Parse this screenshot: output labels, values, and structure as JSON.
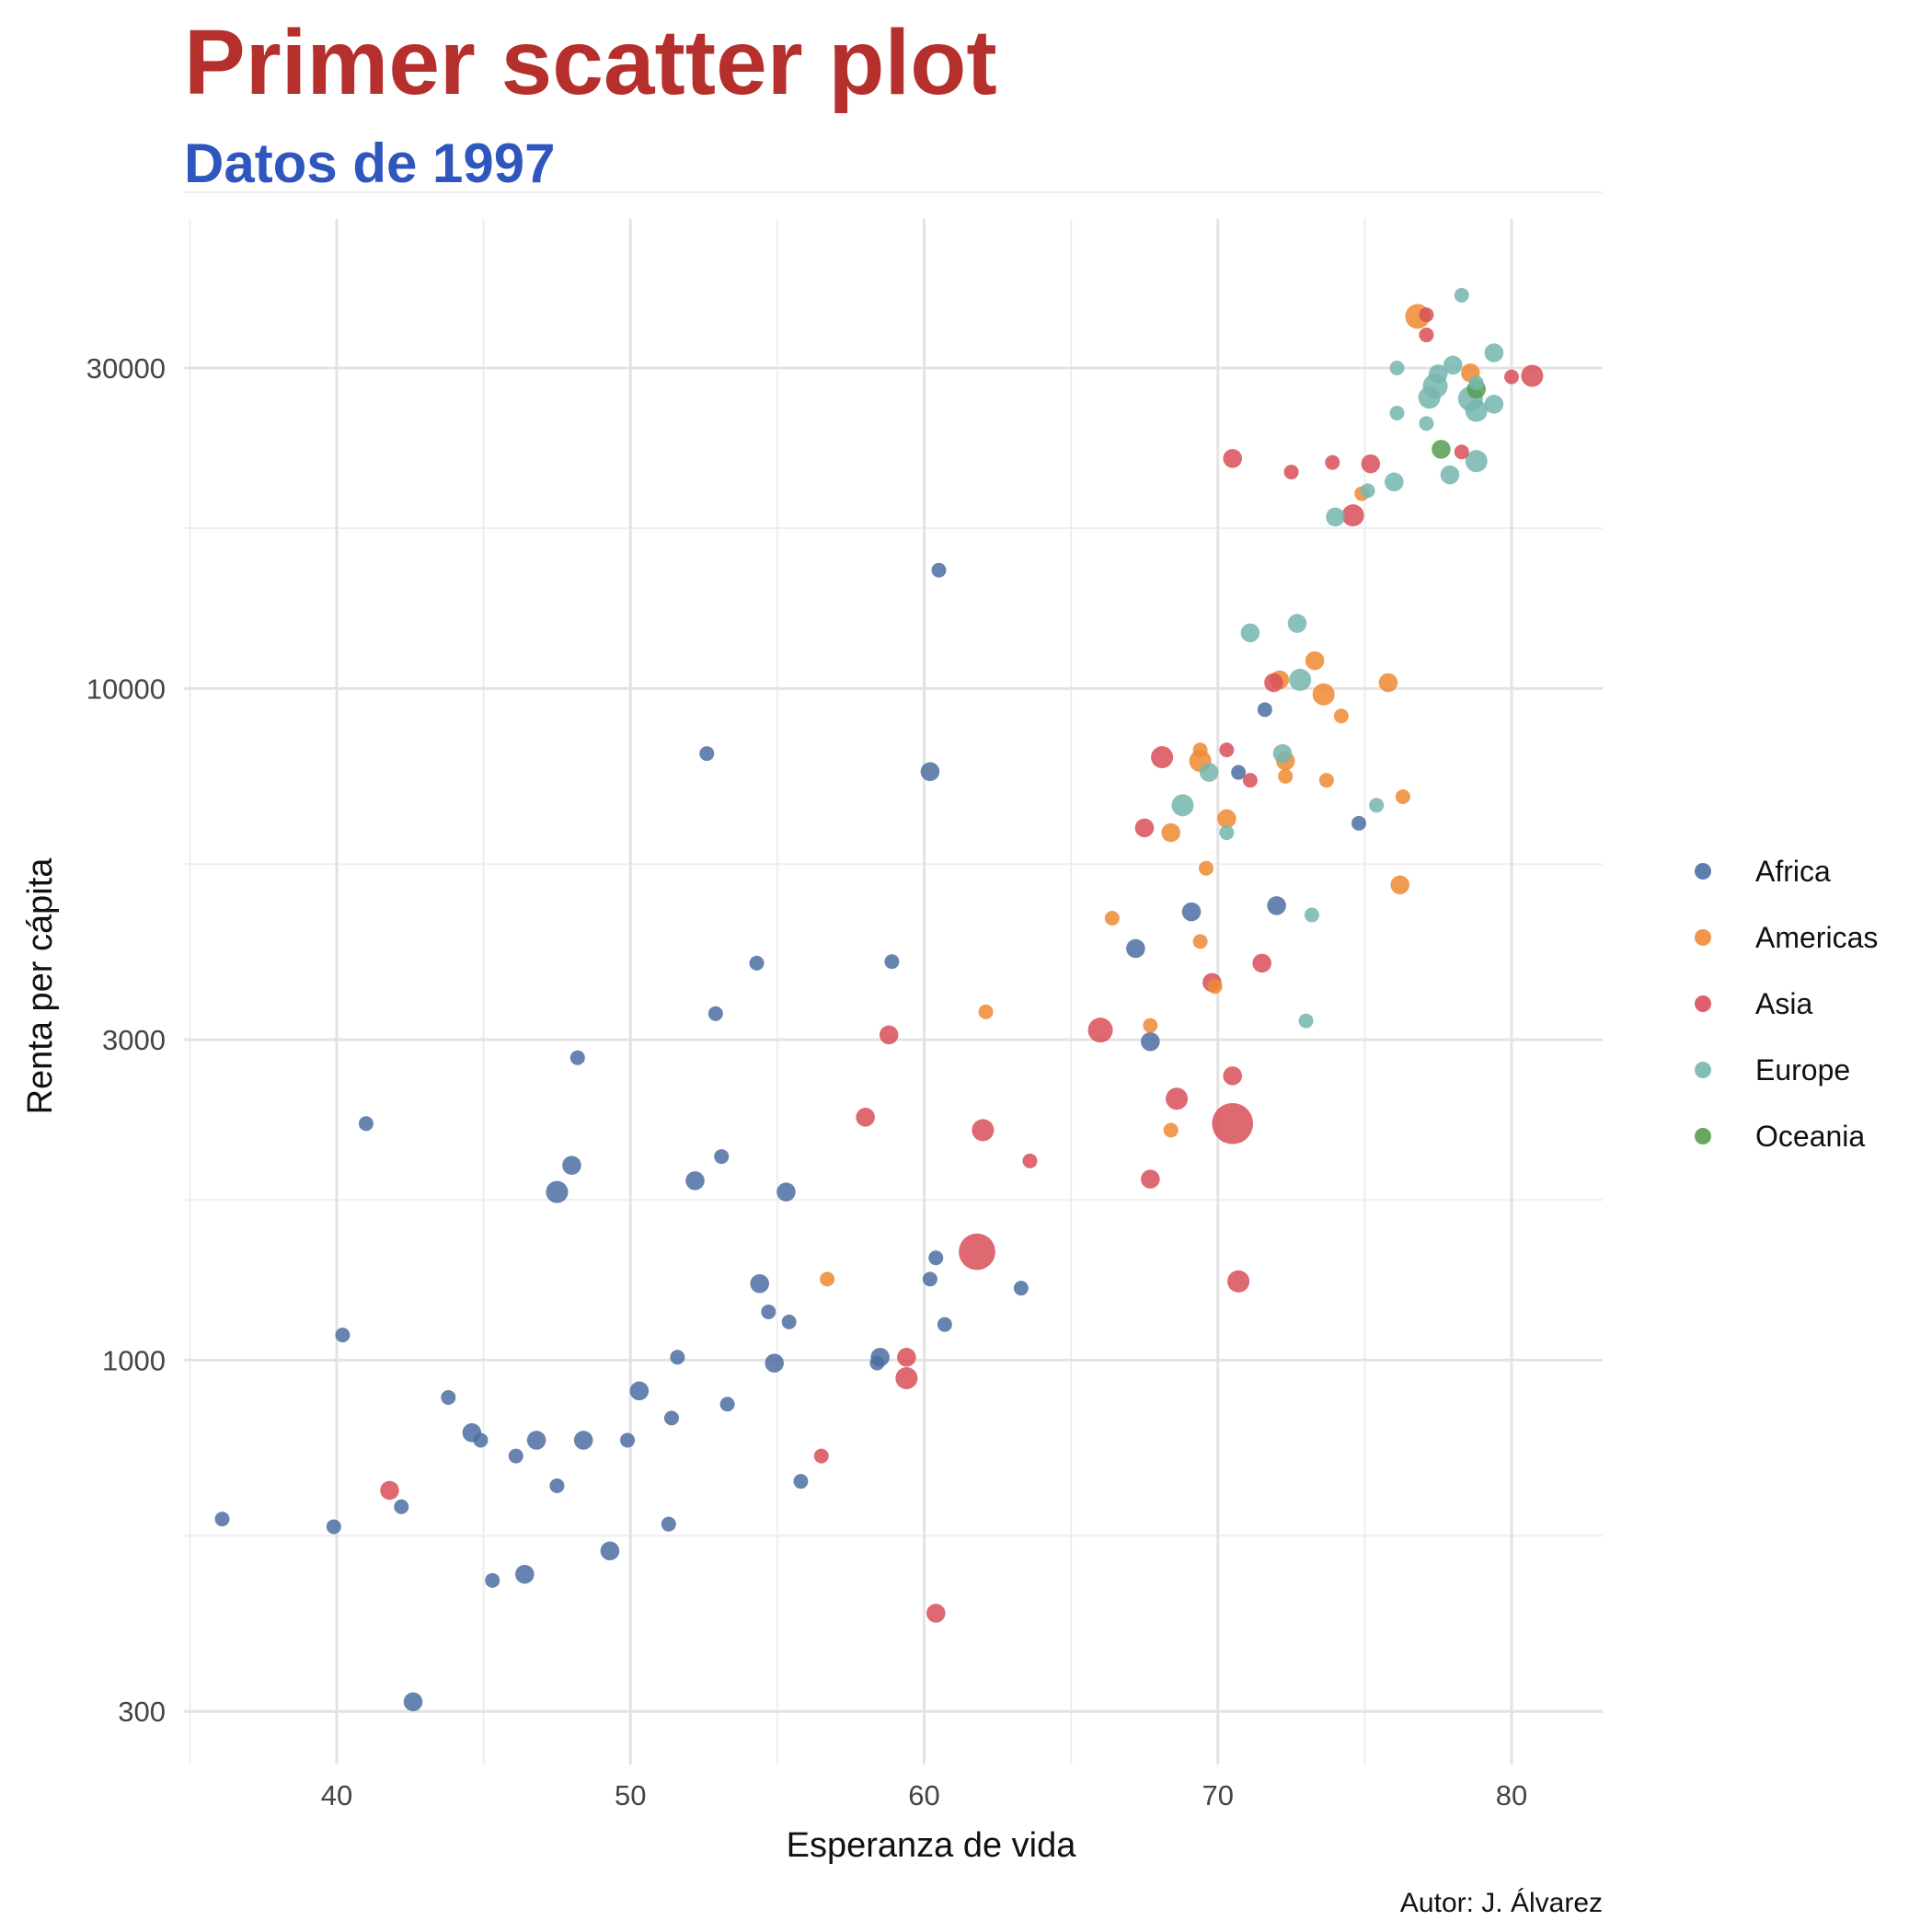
{
  "colors": {
    "title": "#b5302c",
    "subtitle": "#2f56be",
    "grid_major": "#e3e3e3",
    "grid_minor": "#eeeeee"
  },
  "caption": "Autor: J. Álvarez",
  "chart_data": {
    "type": "scatter",
    "title": "Primer scatter plot",
    "subtitle": "Datos de 1997",
    "xlabel": "Esperanza de vida",
    "ylabel": "Renta per cápita",
    "x_scale": "linear",
    "y_scale": "log10",
    "xlim": [
      34.8,
      83.1
    ],
    "ylim": [
      250,
      50000
    ],
    "x_ticks": [
      40,
      50,
      60,
      70,
      80
    ],
    "x_tick_labels": [
      "40",
      "50",
      "60",
      "70",
      "80"
    ],
    "y_ticks": [
      300,
      1000,
      3000,
      10000,
      30000
    ],
    "y_tick_labels": [
      "300",
      "1000",
      "3000",
      "10000",
      "30000"
    ],
    "grid": true,
    "legend_position": "right",
    "point_size_meaning": "population",
    "series": [
      {
        "name": "Africa",
        "color": "#4e6fa3",
        "points": [
          [
            36.1,
            580,
            1
          ],
          [
            39.9,
            565,
            1
          ],
          [
            40.2,
            1090,
            1
          ],
          [
            41.0,
            2250,
            1
          ],
          [
            42.2,
            605,
            1
          ],
          [
            42.6,
            310,
            2
          ],
          [
            43.8,
            880,
            1
          ],
          [
            44.6,
            780,
            2
          ],
          [
            44.9,
            760,
            1
          ],
          [
            45.3,
            470,
            1
          ],
          [
            46.1,
            720,
            1
          ],
          [
            46.4,
            480,
            2
          ],
          [
            46.8,
            760,
            2
          ],
          [
            47.5,
            650,
            1
          ],
          [
            47.5,
            1780,
            3
          ],
          [
            48.0,
            1950,
            2
          ],
          [
            48.2,
            2820,
            1
          ],
          [
            48.4,
            760,
            2
          ],
          [
            49.3,
            520,
            2
          ],
          [
            49.9,
            760,
            1
          ],
          [
            50.3,
            900,
            2
          ],
          [
            51.3,
            570,
            1
          ],
          [
            51.4,
            820,
            1
          ],
          [
            51.6,
            1010,
            1
          ],
          [
            52.2,
            1850,
            2
          ],
          [
            52.6,
            8000,
            1
          ],
          [
            52.9,
            3280,
            1
          ],
          [
            53.1,
            2010,
            1
          ],
          [
            53.3,
            860,
            1
          ],
          [
            54.3,
            3900,
            1
          ],
          [
            54.4,
            1300,
            2
          ],
          [
            54.7,
            1180,
            1
          ],
          [
            54.9,
            990,
            2
          ],
          [
            55.3,
            1780,
            2
          ],
          [
            55.4,
            1140,
            1
          ],
          [
            55.8,
            660,
            1
          ],
          [
            58.4,
            990,
            1
          ],
          [
            58.5,
            1010,
            2
          ],
          [
            58.9,
            3920,
            1
          ],
          [
            60.2,
            1320,
            1
          ],
          [
            60.2,
            7520,
            2
          ],
          [
            60.4,
            1420,
            1
          ],
          [
            60.5,
            15000,
            1
          ],
          [
            60.7,
            1130,
            1
          ],
          [
            63.3,
            1280,
            1
          ],
          [
            67.2,
            4100,
            2
          ],
          [
            67.7,
            2980,
            2
          ],
          [
            69.1,
            4650,
            2
          ],
          [
            70.7,
            7500,
            1
          ],
          [
            71.6,
            9300,
            1
          ],
          [
            72.0,
            4750,
            2
          ],
          [
            74.8,
            6300,
            1
          ]
        ]
      },
      {
        "name": "Americas",
        "color": "#ef8a34",
        "points": [
          [
            56.7,
            1320,
            1
          ],
          [
            62.1,
            3300,
            1
          ],
          [
            66.4,
            4550,
            1
          ],
          [
            67.7,
            3150,
            1
          ],
          [
            68.4,
            2200,
            1
          ],
          [
            68.4,
            6100,
            2
          ],
          [
            69.4,
            4200,
            1
          ],
          [
            69.4,
            8100,
            1
          ],
          [
            69.4,
            7800,
            3
          ],
          [
            69.6,
            5400,
            1
          ],
          [
            69.9,
            3600,
            1
          ],
          [
            70.3,
            6400,
            2
          ],
          [
            72.1,
            10300,
            2
          ],
          [
            72.3,
            7400,
            1
          ],
          [
            72.3,
            7800,
            2
          ],
          [
            73.3,
            11000,
            2
          ],
          [
            73.6,
            9800,
            3
          ],
          [
            73.7,
            7300,
            1
          ],
          [
            74.2,
            9100,
            1
          ],
          [
            74.9,
            19500,
            1
          ],
          [
            75.8,
            10200,
            2
          ],
          [
            76.2,
            5100,
            2
          ],
          [
            76.3,
            6900,
            1
          ],
          [
            76.8,
            35800,
            4
          ],
          [
            78.6,
            29500,
            2
          ]
        ]
      },
      {
        "name": "Asia",
        "color": "#d9505a",
        "points": [
          [
            41.8,
            640,
            2
          ],
          [
            56.5,
            720,
            1
          ],
          [
            58.0,
            2300,
            2
          ],
          [
            58.8,
            3050,
            2
          ],
          [
            59.4,
            1010,
            2
          ],
          [
            59.4,
            940,
            3
          ],
          [
            60.4,
            420,
            2
          ],
          [
            61.8,
            1450,
            10
          ],
          [
            62.0,
            2200,
            3
          ],
          [
            63.6,
            1980,
            1
          ],
          [
            66.0,
            3100,
            4
          ],
          [
            67.5,
            6200,
            2
          ],
          [
            67.7,
            1860,
            2
          ],
          [
            68.1,
            7900,
            3
          ],
          [
            68.6,
            2450,
            3
          ],
          [
            69.8,
            3650,
            2
          ],
          [
            70.3,
            8100,
            1
          ],
          [
            70.5,
            2250,
            13
          ],
          [
            70.5,
            2650,
            2
          ],
          [
            70.5,
            22000,
            2
          ],
          [
            70.7,
            1310,
            3
          ],
          [
            71.1,
            7300,
            1
          ],
          [
            71.5,
            3900,
            2
          ],
          [
            71.9,
            10200,
            2
          ],
          [
            72.5,
            21000,
            1
          ],
          [
            73.9,
            21700,
            1
          ],
          [
            74.6,
            18100,
            3
          ],
          [
            75.2,
            21600,
            2
          ],
          [
            77.1,
            36000,
            1
          ],
          [
            77.1,
            33600,
            1
          ],
          [
            78.3,
            22500,
            1
          ],
          [
            80.0,
            29100,
            1
          ],
          [
            80.7,
            29200,
            3
          ]
        ]
      },
      {
        "name": "Europe",
        "color": "#76b7af",
        "points": [
          [
            68.8,
            6700,
            3
          ],
          [
            69.7,
            7500,
            2
          ],
          [
            70.3,
            6100,
            1
          ],
          [
            71.1,
            12100,
            2
          ],
          [
            72.2,
            8000,
            2
          ],
          [
            72.7,
            12500,
            2
          ],
          [
            72.8,
            10300,
            3
          ],
          [
            73.0,
            3200,
            1
          ],
          [
            73.2,
            4600,
            1
          ],
          [
            74.0,
            18000,
            2
          ],
          [
            75.1,
            19700,
            1
          ],
          [
            75.4,
            6700,
            1
          ],
          [
            76.0,
            20300,
            2
          ],
          [
            76.1,
            25700,
            1
          ],
          [
            76.1,
            30000,
            1
          ],
          [
            77.1,
            24800,
            1
          ],
          [
            77.2,
            27100,
            3
          ],
          [
            77.4,
            28200,
            4
          ],
          [
            77.5,
            29400,
            2
          ],
          [
            77.9,
            20800,
            2
          ],
          [
            78.0,
            30300,
            2
          ],
          [
            78.3,
            38500,
            1
          ],
          [
            78.6,
            27000,
            4
          ],
          [
            78.8,
            28500,
            1
          ],
          [
            78.8,
            25900,
            3
          ],
          [
            78.8,
            21800,
            3
          ],
          [
            79.4,
            26500,
            2
          ],
          [
            79.4,
            31600,
            2
          ]
        ]
      },
      {
        "name": "Oceania",
        "color": "#589d50",
        "points": [
          [
            77.6,
            22700,
            2
          ],
          [
            78.8,
            27900,
            2
          ]
        ]
      }
    ]
  }
}
